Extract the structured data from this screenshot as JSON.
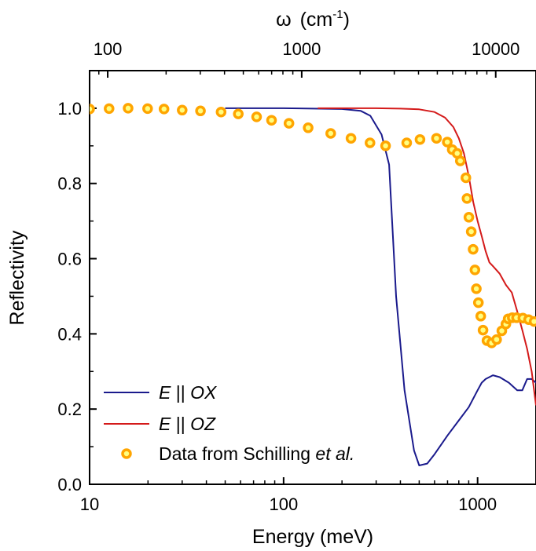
{
  "chart_data": {
    "type": "line",
    "title": "",
    "xlabel": "Energy (meV)",
    "ylabel": "Reflectivity",
    "x_scale": "log",
    "xlim": [
      10,
      2000
    ],
    "ylim": [
      0.0,
      1.1
    ],
    "x_ticks": [
      10,
      100,
      1000
    ],
    "x_tick_labels": [
      "10",
      "100",
      "1000"
    ],
    "y_ticks": [
      0.0,
      0.2,
      0.4,
      0.6,
      0.8,
      1.0
    ],
    "y_tick_labels": [
      "0.0",
      "0.2",
      "0.4",
      "0.6",
      "0.8",
      "1.0"
    ],
    "top_axis": {
      "label_symbol": "ω",
      "label_unit": "(cm",
      "label_exponent": "-1",
      "label_close": ")",
      "scale": "log",
      "conversion_cm1_per_meV": 8.0655,
      "ticks": [
        100,
        1000,
        10000
      ],
      "tick_labels": [
        "100",
        "1000",
        "10000"
      ]
    },
    "legend_placement": "bottom-left",
    "series": [
      {
        "name": "E || OX",
        "legend_italic_a": "E",
        "legend_mid": " || ",
        "legend_italic_b": "OX",
        "style": "line",
        "color": "#1a1a8c",
        "x": [
          50,
          100,
          200,
          250,
          280,
          320,
          350,
          380,
          420,
          470,
          500,
          550,
          600,
          700,
          800,
          900,
          1000,
          1050,
          1100,
          1200,
          1300,
          1450,
          1600,
          1700,
          1800,
          1900,
          2000
        ],
        "y": [
          1.0,
          1.0,
          0.998,
          0.993,
          0.98,
          0.93,
          0.85,
          0.5,
          0.25,
          0.09,
          0.05,
          0.055,
          0.08,
          0.13,
          0.17,
          0.205,
          0.25,
          0.27,
          0.28,
          0.29,
          0.285,
          0.27,
          0.25,
          0.25,
          0.28,
          0.28,
          0.27
        ]
      },
      {
        "name": "E || OZ",
        "legend_italic_a": "E",
        "legend_mid": " || ",
        "legend_italic_b": "OZ",
        "style": "line",
        "color": "#d41a1a",
        "x": [
          150,
          300,
          400,
          500,
          600,
          680,
          750,
          800,
          850,
          900,
          950,
          1000,
          1050,
          1100,
          1150,
          1200,
          1300,
          1400,
          1500,
          1600,
          1700,
          1800,
          1900,
          2000
        ],
        "y": [
          1.0,
          1.0,
          0.999,
          0.997,
          0.99,
          0.975,
          0.95,
          0.92,
          0.88,
          0.82,
          0.75,
          0.7,
          0.66,
          0.62,
          0.59,
          0.58,
          0.56,
          0.53,
          0.51,
          0.46,
          0.41,
          0.36,
          0.3,
          0.21
        ]
      },
      {
        "name": "Data from Schilling et al.",
        "legend_text": "Data from Schilling ",
        "legend_italic": "et al.",
        "style": "markers",
        "color": "#ffa500",
        "marker_edge": "#ffa500",
        "marker_fill": "#ffff80",
        "x": [
          10,
          12.6,
          15.8,
          19.9,
          24.2,
          30.0,
          37.3,
          47.6,
          58.4,
          72.6,
          86.7,
          106.6,
          133.8,
          174.9,
          222.5,
          279.0,
          335.5,
          431.1,
          504.6,
          613.8,
          697.4,
          739.6,
          784.6,
          814.6,
          870.3,
          882.1,
          901.7,
          927.1,
          947.9,
          968.6,
          985.0,
          1009.0,
          1038.2,
          1066.2,
          1117.2,
          1181.3,
          1253.2,
          1332.4,
          1399.1,
          1438.2,
          1508.7,
          1588.1,
          1711.3,
          1832.6,
          1955.5
        ],
        "y": [
          0.998,
          0.999,
          1.0,
          0.999,
          0.998,
          0.995,
          0.993,
          0.99,
          0.985,
          0.977,
          0.968,
          0.96,
          0.948,
          0.933,
          0.92,
          0.908,
          0.9,
          0.908,
          0.917,
          0.92,
          0.91,
          0.89,
          0.88,
          0.86,
          0.815,
          0.76,
          0.71,
          0.672,
          0.625,
          0.57,
          0.52,
          0.483,
          0.447,
          0.41,
          0.382,
          0.376,
          0.385,
          0.408,
          0.426,
          0.44,
          0.443,
          0.443,
          0.442,
          0.438,
          0.433
        ]
      }
    ]
  }
}
